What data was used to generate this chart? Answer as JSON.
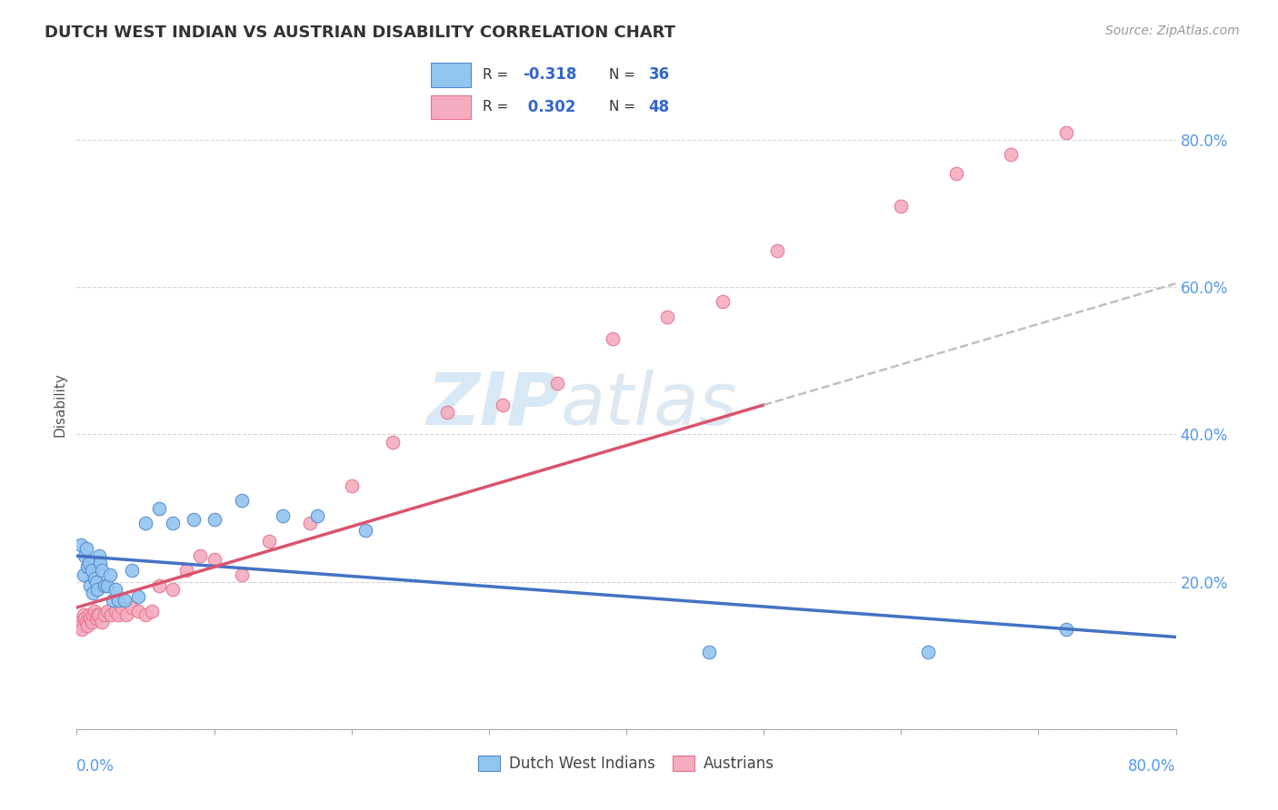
{
  "title": "DUTCH WEST INDIAN VS AUSTRIAN DISABILITY CORRELATION CHART",
  "source": "Source: ZipAtlas.com",
  "ylabel": "Disability",
  "xlim": [
    0.0,
    0.8
  ],
  "ylim": [
    0.0,
    0.88
  ],
  "color_blue": "#92C5F0",
  "color_blue_line": "#4472C4",
  "color_pink": "#F4ACBE",
  "color_pink_line": "#D9546E",
  "color_dashed": "#C0C0C0",
  "watermark_zip": "ZIP",
  "watermark_atlas": "atlas",
  "blue_x": [
    0.003,
    0.005,
    0.006,
    0.007,
    0.008,
    0.009,
    0.01,
    0.011,
    0.012,
    0.013,
    0.014,
    0.015,
    0.016,
    0.017,
    0.018,
    0.02,
    0.022,
    0.024,
    0.026,
    0.028,
    0.03,
    0.035,
    0.04,
    0.045,
    0.05,
    0.06,
    0.07,
    0.085,
    0.1,
    0.12,
    0.15,
    0.175,
    0.21,
    0.46,
    0.62,
    0.72
  ],
  "blue_y": [
    0.25,
    0.21,
    0.235,
    0.245,
    0.22,
    0.225,
    0.195,
    0.215,
    0.185,
    0.205,
    0.2,
    0.19,
    0.235,
    0.225,
    0.215,
    0.195,
    0.195,
    0.21,
    0.175,
    0.19,
    0.175,
    0.175,
    0.215,
    0.18,
    0.28,
    0.3,
    0.28,
    0.285,
    0.285,
    0.31,
    0.29,
    0.29,
    0.27,
    0.105,
    0.105,
    0.135
  ],
  "pink_x": [
    0.002,
    0.003,
    0.004,
    0.005,
    0.006,
    0.007,
    0.008,
    0.009,
    0.01,
    0.011,
    0.012,
    0.013,
    0.014,
    0.015,
    0.016,
    0.018,
    0.02,
    0.022,
    0.025,
    0.028,
    0.03,
    0.033,
    0.036,
    0.04,
    0.045,
    0.05,
    0.055,
    0.06,
    0.07,
    0.08,
    0.09,
    0.1,
    0.12,
    0.14,
    0.17,
    0.2,
    0.23,
    0.27,
    0.31,
    0.35,
    0.39,
    0.43,
    0.47,
    0.51,
    0.6,
    0.64,
    0.68,
    0.72
  ],
  "pink_y": [
    0.145,
    0.14,
    0.135,
    0.155,
    0.15,
    0.145,
    0.14,
    0.155,
    0.15,
    0.145,
    0.155,
    0.16,
    0.15,
    0.155,
    0.155,
    0.145,
    0.155,
    0.16,
    0.155,
    0.16,
    0.155,
    0.165,
    0.155,
    0.165,
    0.16,
    0.155,
    0.16,
    0.195,
    0.19,
    0.215,
    0.235,
    0.23,
    0.21,
    0.255,
    0.28,
    0.33,
    0.39,
    0.43,
    0.44,
    0.47,
    0.53,
    0.56,
    0.58,
    0.65,
    0.71,
    0.755,
    0.78,
    0.81
  ],
  "trend_blue_x0": 0.0,
  "trend_blue_x1": 0.8,
  "trend_blue_y0": 0.235,
  "trend_blue_y1": 0.125,
  "trend_pink_solid_x0": 0.0,
  "trend_pink_solid_x1": 0.5,
  "trend_pink_y0": 0.165,
  "trend_pink_y1": 0.44,
  "trend_pink_dash_x0": 0.5,
  "trend_pink_dash_x1": 0.8,
  "trend_pink_dash_y0": 0.44,
  "trend_pink_dash_y1": 0.605
}
